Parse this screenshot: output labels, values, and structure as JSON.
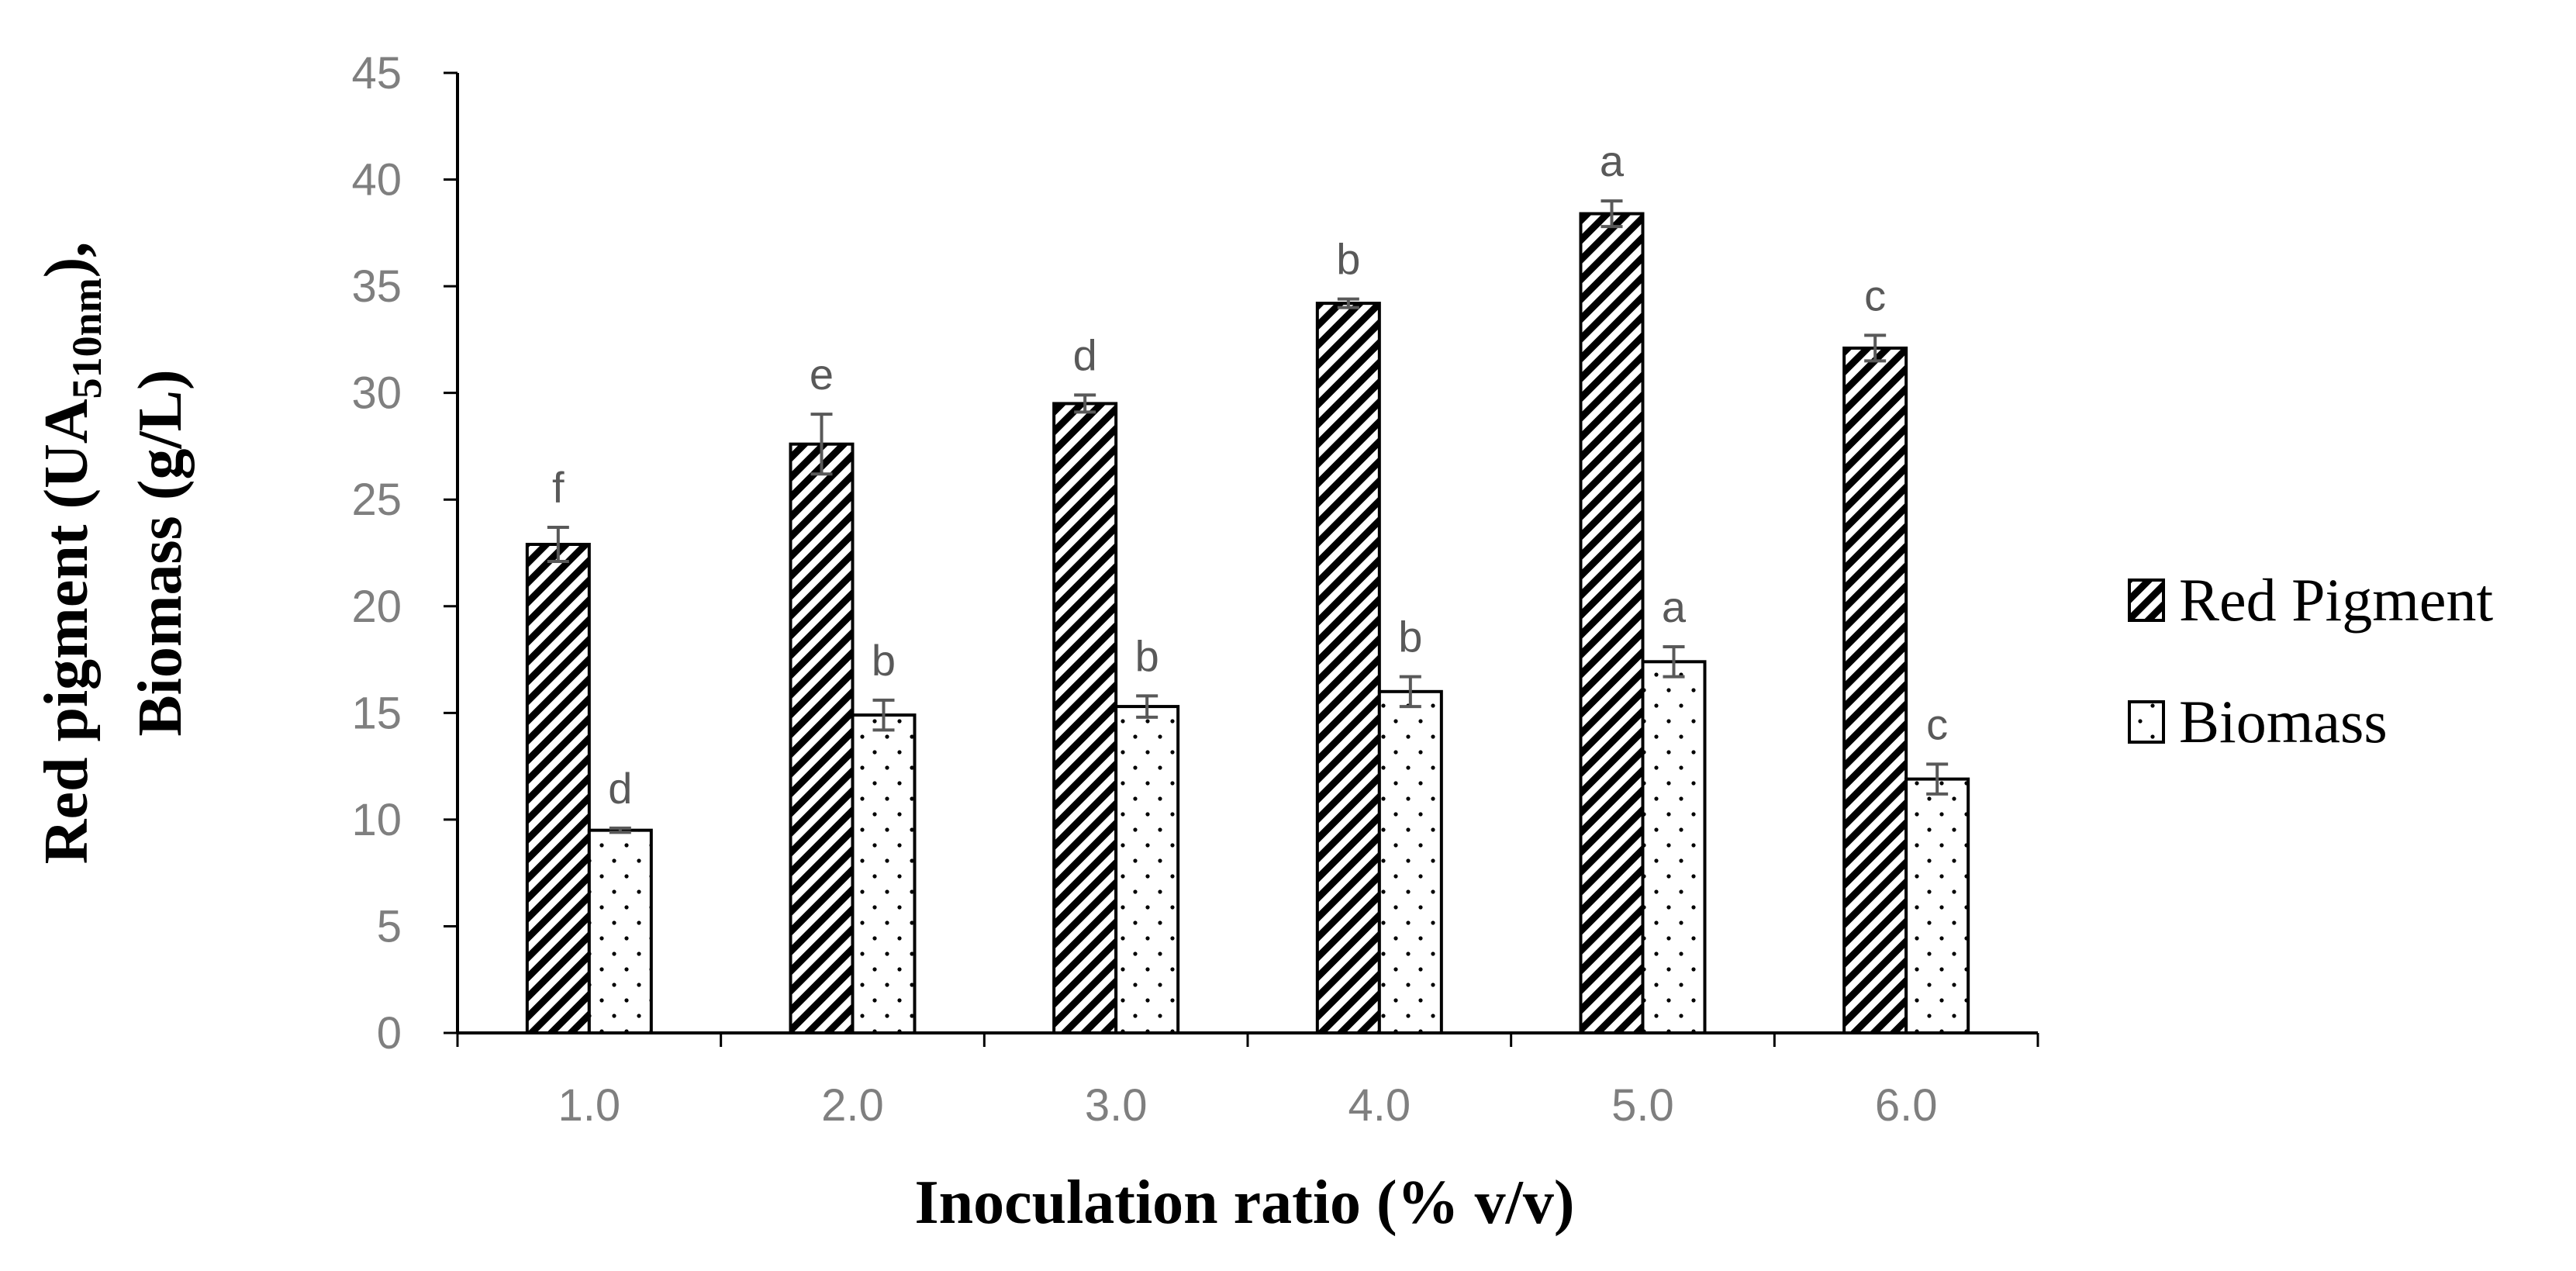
{
  "chart_data": {
    "type": "bar",
    "categories": [
      "1.0",
      "2.0",
      "3.0",
      "4.0",
      "5.0",
      "6.0"
    ],
    "series": [
      {
        "name": "Red Pigment",
        "values": [
          22.9,
          27.6,
          29.5,
          34.2,
          38.4,
          32.1
        ],
        "errors": [
          0.8,
          1.4,
          0.4,
          0.2,
          0.6,
          0.6
        ],
        "letters": [
          "f",
          "e",
          "d",
          "b",
          "a",
          "c"
        ],
        "pattern": "diagonal-hatch"
      },
      {
        "name": "Biomass",
        "values": [
          9.5,
          14.9,
          15.3,
          16.0,
          17.4,
          11.9
        ],
        "errors": [
          0.1,
          0.7,
          0.5,
          0.7,
          0.7,
          0.7
        ],
        "letters": [
          "d",
          "b",
          "b",
          "b",
          "a",
          "c"
        ],
        "pattern": "dots"
      }
    ],
    "ylim": [
      0,
      45
    ],
    "yticks": [
      0,
      5,
      10,
      15,
      20,
      25,
      30,
      35,
      40,
      45
    ],
    "xlabel": "Inoculation ratio (% v/v)",
    "ylabel_line1_main": "Red pigment (UA",
    "ylabel_line1_sub": "510nm",
    "ylabel_line1_end": "),",
    "ylabel_line2": "Biomass (g/L)",
    "legend_position": "right",
    "grid": false
  },
  "colors": {
    "axis": "#000000",
    "tick_text": "#7f7f7f",
    "error_bar": "#595959",
    "bar_fill": "#ffffff",
    "bar_stroke": "#000000"
  }
}
